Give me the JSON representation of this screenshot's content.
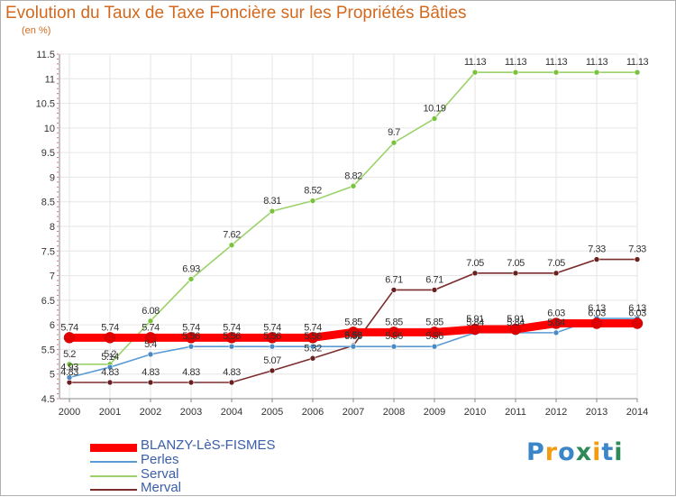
{
  "title": "Evolution du Taux de Taxe Foncière sur les Propriétés Bâties",
  "unit_label": "(en %)",
  "logo": {
    "letters": [
      "P",
      "r",
      "o",
      "x",
      "i",
      "t",
      "i"
    ],
    "colors": [
      "#3a86c8",
      "#f39c12",
      "#3a86c8",
      "#2e8b57",
      "#f39c12",
      "#3a86c8",
      "#2e8b57"
    ]
  },
  "chart_data": {
    "type": "line",
    "title": "Evolution du Taux de Taxe Foncière sur les Propriétés Bâties",
    "ylabel": "(en %)",
    "xlabel": "",
    "ylim": [
      4.5,
      11.5
    ],
    "yticks": [
      4.5,
      5,
      5.5,
      6,
      6.5,
      7,
      7.5,
      8,
      8.5,
      9,
      9.5,
      10,
      10.5,
      11,
      11.5
    ],
    "ytick_labels": [
      "4.5",
      "5",
      "5.5",
      "6",
      "6.5",
      "7",
      "7.5",
      "8",
      "8.5",
      "9",
      "9.5",
      "10",
      "10.5",
      "11",
      "11.5"
    ],
    "x": [
      "2000",
      "2001",
      "2002",
      "2003",
      "2004",
      "2005",
      "2006",
      "2007",
      "2008",
      "2009",
      "2010",
      "2011",
      "2012",
      "2013",
      "2014"
    ],
    "grid": true,
    "legend_position": "bottom-left",
    "series": [
      {
        "name": "BLANZY-LèS-FISMES",
        "color": "#ff0000",
        "marker": "#e00000",
        "values": [
          5.74,
          5.74,
          5.74,
          5.74,
          5.74,
          5.74,
          5.74,
          5.85,
          5.85,
          5.85,
          5.91,
          5.91,
          6.03,
          6.03,
          6.03
        ],
        "labels": [
          "5.74",
          "5.74",
          "5.74",
          "5.74",
          "5.74",
          "5.74",
          "5.74",
          "5.85",
          "5.85",
          "5.85",
          "5.91",
          "5.91",
          "6.03",
          "6.03",
          "6.03"
        ]
      },
      {
        "name": "Perles",
        "color": "#5b9bd5",
        "marker": "#4a8ac4",
        "values": [
          4.93,
          5.14,
          5.4,
          5.56,
          5.56,
          5.56,
          5.56,
          5.56,
          5.56,
          5.56,
          5.84,
          5.84,
          5.84,
          6.13,
          6.13
        ],
        "labels": [
          "4.93",
          "5.14",
          "5.4",
          "5.56",
          "5.56",
          "5.56",
          "5.56",
          "5.56",
          "5.56",
          "5.56",
          "5.84",
          "5.84",
          "5.84",
          "6.13",
          "6.13"
        ]
      },
      {
        "name": "Serval",
        "color": "#9cd26b",
        "marker": "#78c23c",
        "values": [
          5.2,
          5.2,
          6.08,
          6.93,
          7.62,
          8.31,
          8.52,
          8.82,
          9.7,
          10.19,
          11.13,
          11.13,
          11.13,
          11.13,
          11.13
        ],
        "labels": [
          "5.2",
          "5.2",
          "6.08",
          "6.93",
          "7.62",
          "8.31",
          "8.52",
          "8.82",
          "9.7",
          "10.19",
          "11.13",
          "11.13",
          "11.13",
          "11.13",
          "11.13"
        ]
      },
      {
        "name": "Merval",
        "color": "#7b2d2d",
        "marker": "#6b1f1f",
        "values": [
          4.83,
          4.83,
          4.83,
          4.83,
          4.83,
          5.07,
          5.32,
          5.58,
          6.71,
          6.71,
          7.05,
          7.05,
          7.05,
          7.33,
          7.33
        ],
        "labels": [
          "4.83",
          "4.83",
          "4.83",
          "4.83",
          "4.83",
          "5.07",
          "5.32",
          "5.58",
          "6.71",
          "6.71",
          "7.05",
          "7.05",
          "7.05",
          "7.33",
          "7.33"
        ]
      }
    ]
  }
}
